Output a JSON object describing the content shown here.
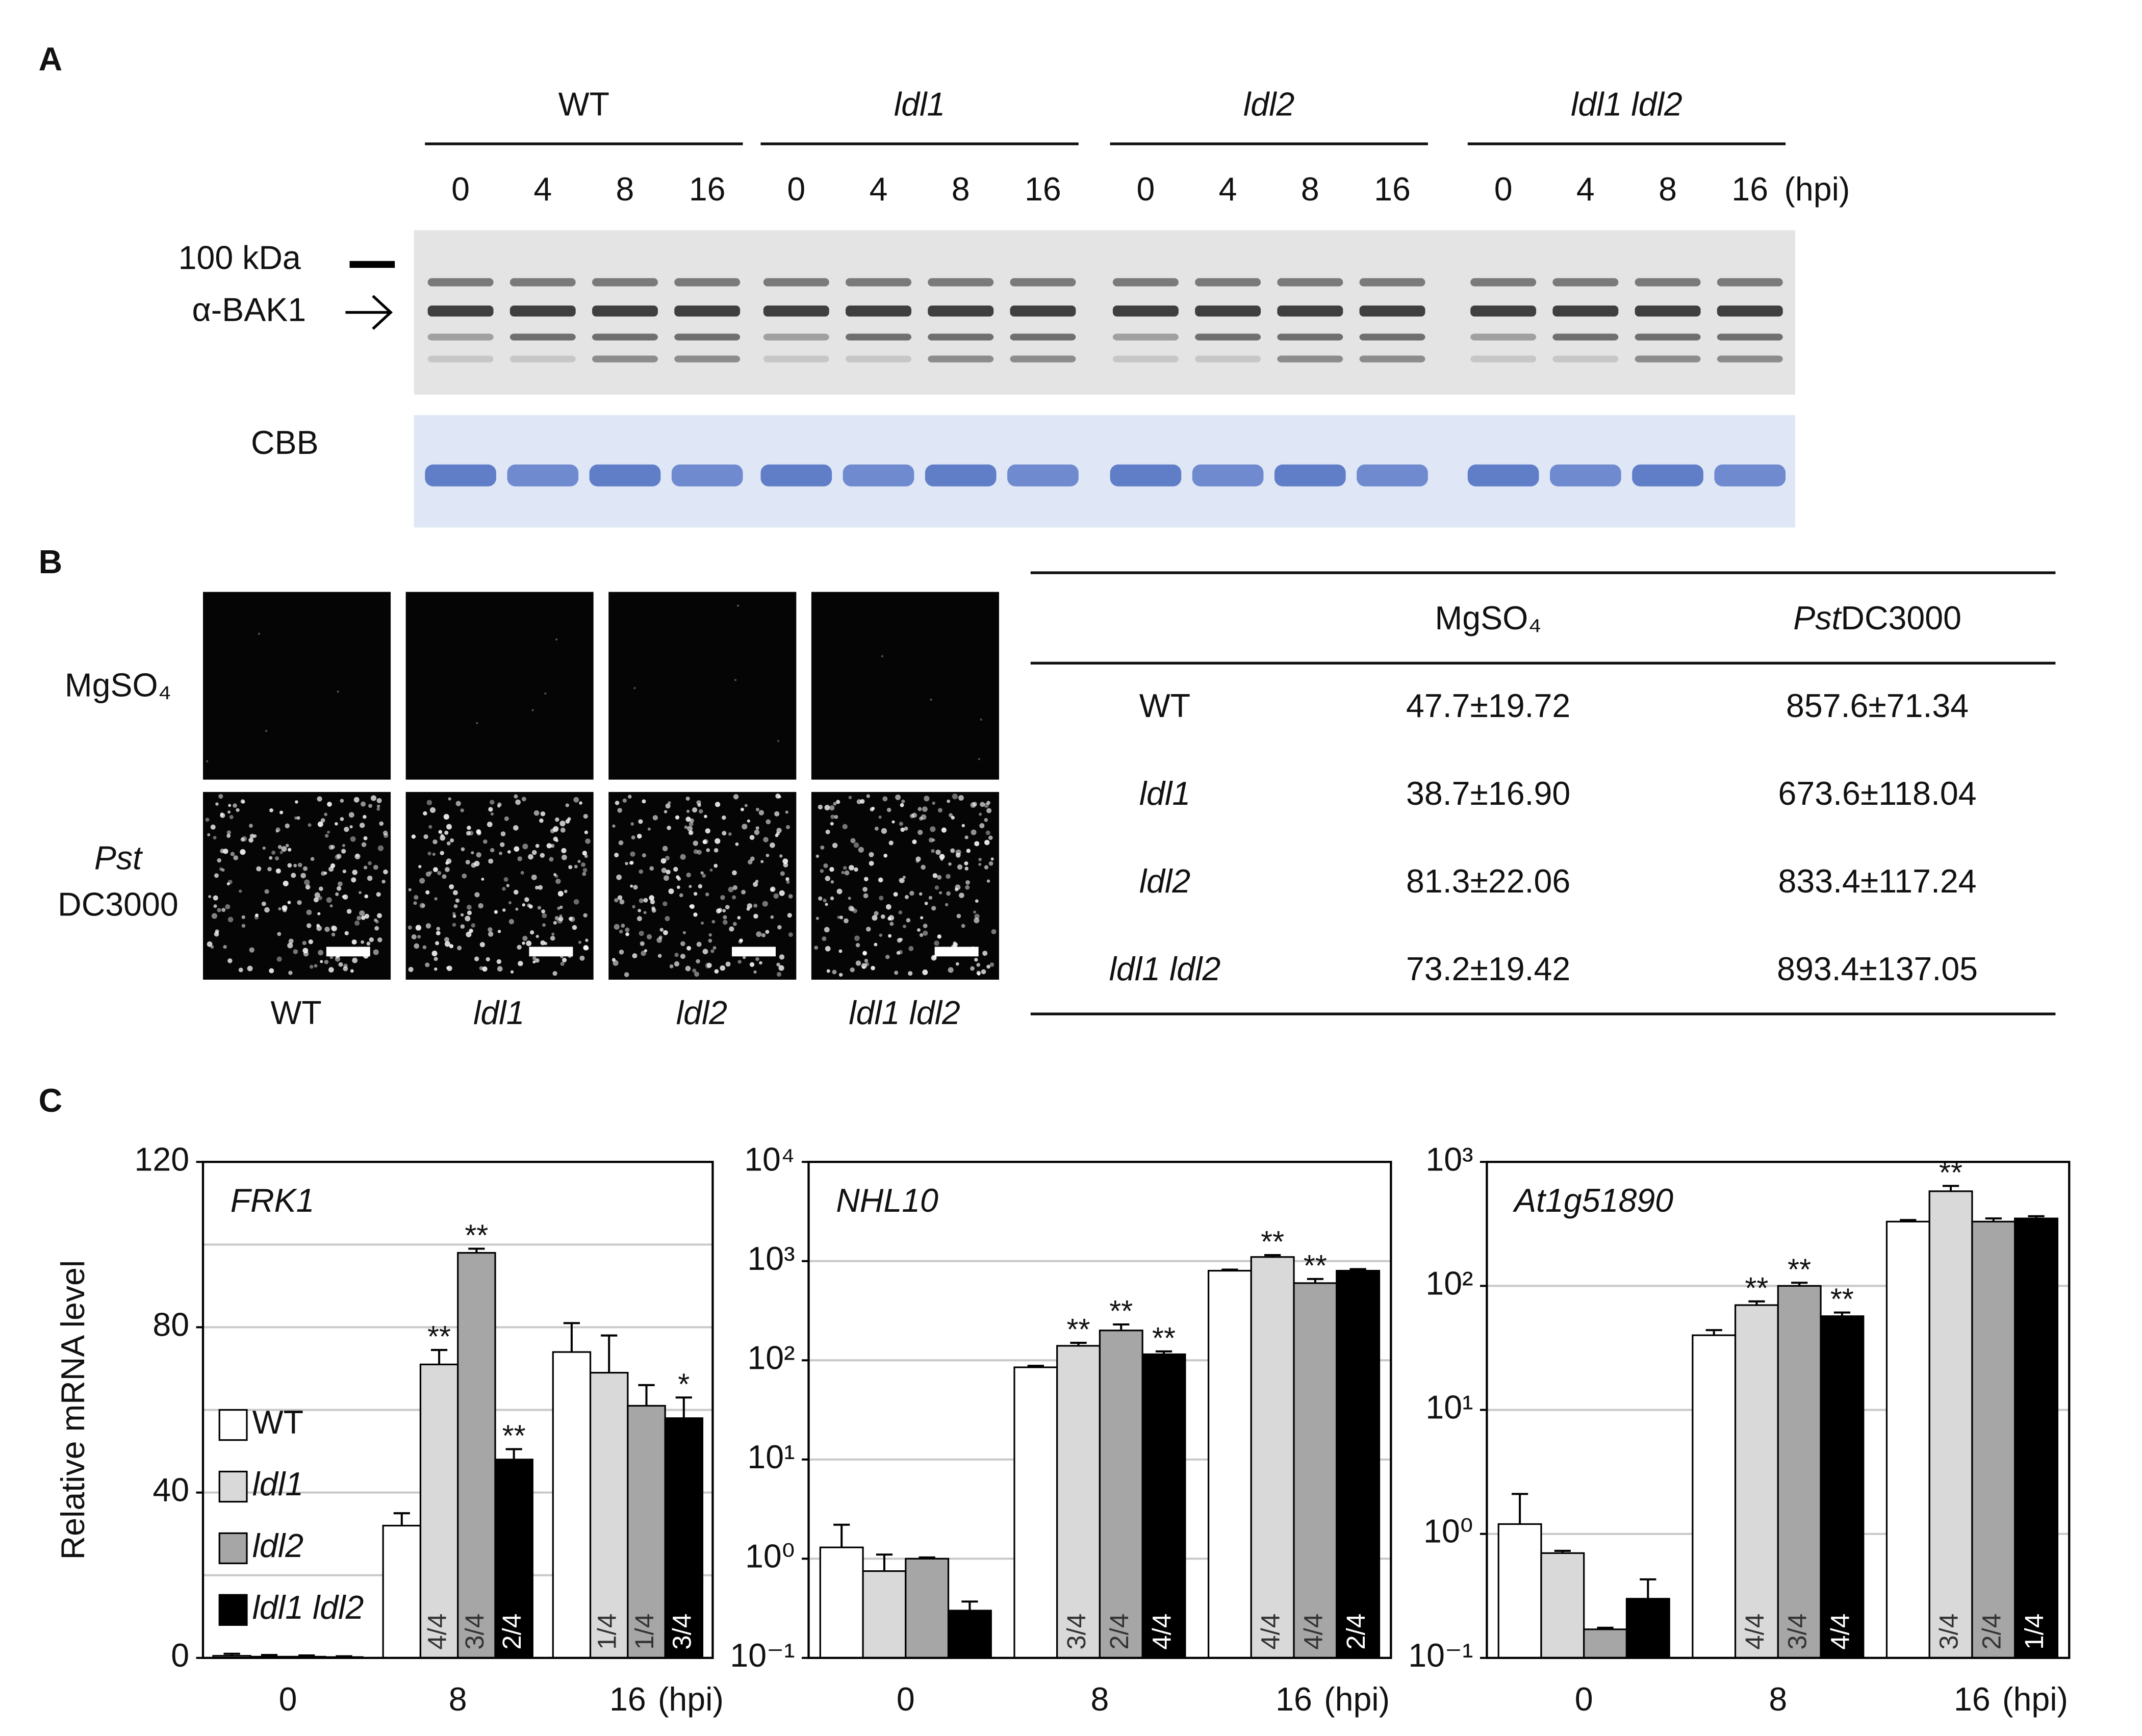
{
  "panel_labels": [
    "A",
    "B",
    "C"
  ],
  "blot": {
    "groups": [
      "WT",
      "ldl1",
      "ldl2",
      "ldl1 ldl2"
    ],
    "timepoints": [
      "0",
      "4",
      "8",
      "16"
    ],
    "unit": "(hpi)",
    "marker": "100 kDa",
    "antibody": "α-BAK1",
    "stain": "CBB"
  },
  "microscopy": {
    "rows": [
      [
        "MgSO₄"
      ],
      [
        "Pst",
        "DC3000"
      ]
    ],
    "columns": [
      "WT",
      "ldl1",
      "ldl2",
      "ldl1 ldl2"
    ]
  },
  "table": {
    "columns": [
      [
        "MgSO₄"
      ],
      [
        "Pst",
        "DC3000"
      ]
    ],
    "rows": [
      [
        "WT",
        "47.7±19.72",
        "857.6±71.34"
      ],
      [
        "ldl1",
        "38.7±16.90",
        "673.6±118.04"
      ],
      [
        "ldl2",
        "81.3±22.06",
        "833.4±117.24"
      ],
      [
        "ldl1 ldl2",
        "73.2±19.42",
        "893.4±137.05"
      ]
    ]
  },
  "chart_data": [
    {
      "type": "bar",
      "title": "FRK1",
      "ylabel": "Relative mRNA level",
      "categories": [
        "0",
        "8",
        "16"
      ],
      "x_unit": "(hpi)",
      "ylim": [
        0,
        120
      ],
      "yticks": [
        0,
        40,
        80,
        120
      ],
      "grid_lines": [
        20,
        40,
        60,
        80,
        100
      ],
      "log": false,
      "legend": true,
      "series": [
        {
          "name": "WT",
          "italic": false,
          "color": "#ffffff",
          "values": [
            0.5,
            32,
            74
          ],
          "errors": [
            0.5,
            3,
            7
          ],
          "stars": [
            null,
            null,
            null
          ],
          "fractions": [
            null,
            null,
            null
          ]
        },
        {
          "name": "ldl1",
          "italic": true,
          "color": "#d9d9d9",
          "values": [
            0.3,
            71,
            69
          ],
          "errors": [
            0.4,
            3.5,
            9
          ],
          "stars": [
            null,
            "**",
            null
          ],
          "fractions": [
            null,
            "4/4",
            "1/4"
          ]
        },
        {
          "name": "ldl2",
          "italic": true,
          "color": "#a6a6a6",
          "values": [
            0.3,
            98,
            61
          ],
          "errors": [
            0.3,
            1,
            5
          ],
          "stars": [
            null,
            "**",
            null
          ],
          "fractions": [
            null,
            "3/4",
            "1/4"
          ]
        },
        {
          "name": "ldl1 ldl2",
          "italic": true,
          "color": "#000000",
          "values": [
            0.2,
            48,
            58
          ],
          "errors": [
            0.2,
            2.5,
            5
          ],
          "stars": [
            null,
            "**",
            "*"
          ],
          "fractions": [
            null,
            "2/4",
            "3/4"
          ]
        }
      ]
    },
    {
      "type": "bar",
      "title": "NHL10",
      "categories": [
        "0",
        "8",
        "16"
      ],
      "x_unit": "(hpi)",
      "ylim": [
        0.1,
        10000
      ],
      "yticks": [
        {
          "value": 0.1,
          "label": "10⁻¹"
        },
        {
          "value": 1,
          "label": "10⁰"
        },
        {
          "value": 10,
          "label": "10¹"
        },
        {
          "value": 100,
          "label": "10²"
        },
        {
          "value": 1000,
          "label": "10³"
        },
        {
          "value": 10000,
          "label": "10⁴"
        }
      ],
      "grid_lines": [
        1,
        10,
        100,
        1000
      ],
      "log": true,
      "legend": false,
      "series": [
        {
          "color": "#ffffff",
          "values": [
            1.3,
            85,
            800
          ],
          "errors": [
            0.9,
            3,
            20
          ],
          "stars": [
            null,
            null,
            null
          ],
          "fractions": [
            null,
            null,
            null
          ]
        },
        {
          "color": "#d9d9d9",
          "values": [
            0.75,
            140,
            1100
          ],
          "errors": [
            0.35,
            10,
            50
          ],
          "stars": [
            null,
            "**",
            "**"
          ],
          "fractions": [
            null,
            "3/4",
            "4/4"
          ]
        },
        {
          "color": "#a6a6a6",
          "values": [
            1.0,
            200,
            600
          ],
          "errors": [
            0.03,
            30,
            60
          ],
          "stars": [
            null,
            "**",
            "**"
          ],
          "fractions": [
            null,
            "2/4",
            "4/4"
          ]
        },
        {
          "color": "#000000",
          "values": [
            0.3,
            115,
            800
          ],
          "errors": [
            0.07,
            8,
            30
          ],
          "stars": [
            null,
            "**",
            null
          ],
          "fractions": [
            null,
            "4/4",
            "2/4"
          ]
        }
      ]
    },
    {
      "type": "bar",
      "title": "At1g51890",
      "categories": [
        "0",
        "8",
        "16"
      ],
      "x_unit": "(hpi)",
      "ylim": [
        0.1,
        1000
      ],
      "yticks": [
        {
          "value": 0.1,
          "label": "10⁻¹"
        },
        {
          "value": 1,
          "label": "10⁰"
        },
        {
          "value": 10,
          "label": "10¹"
        },
        {
          "value": 100,
          "label": "10²"
        },
        {
          "value": 1000,
          "label": "10³"
        }
      ],
      "grid_lines": [
        1,
        10,
        100
      ],
      "log": true,
      "legend": false,
      "series": [
        {
          "color": "#ffffff",
          "values": [
            1.2,
            40,
            330
          ],
          "errors": [
            0.9,
            4,
            10
          ],
          "stars": [
            null,
            null,
            null
          ],
          "fractions": [
            null,
            null,
            null
          ]
        },
        {
          "color": "#d9d9d9",
          "values": [
            0.7,
            70,
            580
          ],
          "errors": [
            0.03,
            5,
            60
          ],
          "stars": [
            null,
            "**",
            "**"
          ],
          "fractions": [
            null,
            "4/4",
            "3/4"
          ]
        },
        {
          "color": "#a6a6a6",
          "values": [
            0.17,
            100,
            330
          ],
          "errors": [
            0.005,
            6,
            20
          ],
          "stars": [
            null,
            "**",
            null
          ],
          "fractions": [
            null,
            "3/4",
            "2/4"
          ]
        },
        {
          "color": "#000000",
          "values": [
            0.3,
            57,
            350
          ],
          "errors": [
            0.13,
            4,
            15
          ],
          "stars": [
            null,
            "**",
            null
          ],
          "fractions": [
            null,
            "4/4",
            "1/4"
          ]
        }
      ]
    }
  ]
}
